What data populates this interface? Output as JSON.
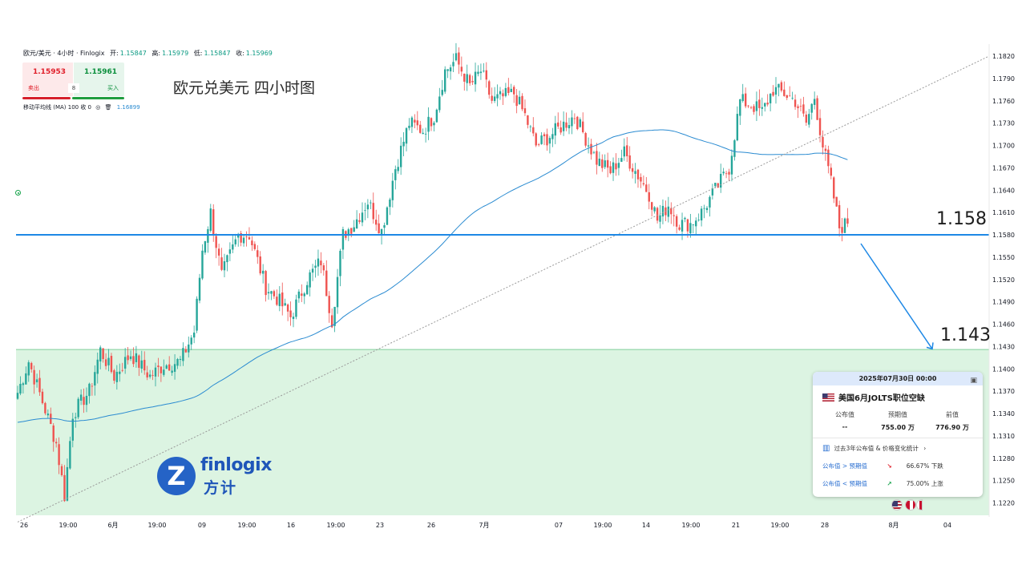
{
  "header": {
    "symbol": "欧元/美元 · 4小时 · Finlogix",
    "open_label": "开:",
    "open": "1.15847",
    "high_label": "高:",
    "high": "1.15979",
    "low_label": "低:",
    "low": "1.15847",
    "close_label": "收:",
    "close": "1.15969"
  },
  "trade": {
    "sell_price": "1.15953",
    "sell_label": "卖出",
    "buy_price": "1.15961",
    "buy_label": "买入",
    "quantity": "8"
  },
  "indicator": {
    "name": "移动平均线 (MA)",
    "params": "100 收 0",
    "value": "1.16899"
  },
  "chart_title": "欧元兑美元 四小时图",
  "annotations": {
    "support_level": "1.158",
    "target_level": "1.143"
  },
  "colors": {
    "up": "#26a69a",
    "down": "#ef5350",
    "ma": "#2a8bd1",
    "level_line": "#1e88e5",
    "zone_fill": "#dcf4e2"
  },
  "logo": {
    "en": "finlogix",
    "zh": "方计"
  },
  "event": {
    "datetime": "2025年07月30日 00:00",
    "title": "美国6月JOLTS职位空缺",
    "flag_icon": "us-flag-icon",
    "actual_label": "公布值",
    "actual_value": "--",
    "forecast_label": "预期值",
    "forecast_value": "755.00 万",
    "previous_label": "前值",
    "previous_value": "776.90 万",
    "stats_link": "过去3年公布值 & 价格变化统计",
    "row1_condition": "公布值 > 预期值",
    "row1_result": "66.67% 下跌",
    "row2_condition": "公布值 < 预期值",
    "row2_result": "75.00% 上涨"
  },
  "chart_data": {
    "type": "candlestick",
    "title": "欧元兑美元 四小时图",
    "symbol": "EUR/USD",
    "timeframe": "4小时",
    "y_range": [
      1.1205,
      1.1835
    ],
    "y_ticks": [
      "1.1820",
      "1.1790",
      "1.1760",
      "1.1730",
      "1.1700",
      "1.1670",
      "1.1640",
      "1.1610",
      "1.1580",
      "1.1550",
      "1.1520",
      "1.1490",
      "1.1460",
      "1.1430",
      "1.1400",
      "1.1370",
      "1.1340",
      "1.1310",
      "1.1280",
      "1.1250",
      "1.1220"
    ],
    "x_ticks": [
      "26",
      "19:00",
      "6月",
      "19:00",
      "09",
      "19:00",
      "16",
      "19:00",
      "23",
      "26",
      "7月",
      "07",
      "19:00",
      "14",
      "19:00",
      "21",
      "19:00",
      "28",
      "8月",
      "04"
    ],
    "ma_period": 100,
    "ma_last": 1.16899,
    "horizontal_level_blue": 1.158,
    "zone_top": 1.1426,
    "projection_target": 1.143,
    "trendline_points": [
      [
        "26 19:00",
        1.1205
      ],
      [
        "8月 04",
        1.182
      ]
    ],
    "price_path": [
      [
        0,
        1.1368
      ],
      [
        4,
        1.141
      ],
      [
        10,
        1.1345
      ],
      [
        14,
        1.13
      ],
      [
        17,
        1.123
      ],
      [
        20,
        1.134
      ],
      [
        26,
        1.137
      ],
      [
        30,
        1.1425
      ],
      [
        35,
        1.139
      ],
      [
        41,
        1.142
      ],
      [
        48,
        1.139
      ],
      [
        53,
        1.1405
      ],
      [
        59,
        1.141
      ],
      [
        64,
        1.145
      ],
      [
        67,
        1.156
      ],
      [
        70,
        1.161
      ],
      [
        74,
        1.1525
      ],
      [
        80,
        1.158
      ],
      [
        84,
        1.158
      ],
      [
        90,
        1.151
      ],
      [
        94,
        1.1495
      ],
      [
        99,
        1.147
      ],
      [
        105,
        1.152
      ],
      [
        110,
        1.1545
      ],
      [
        114,
        1.1465
      ],
      [
        118,
        1.158
      ],
      [
        122,
        1.1595
      ],
      [
        127,
        1.1625
      ],
      [
        132,
        1.1585
      ],
      [
        137,
        1.167
      ],
      [
        142,
        1.173
      ],
      [
        147,
        1.172
      ],
      [
        151,
        1.174
      ],
      [
        155,
        1.18
      ],
      [
        159,
        1.1815
      ],
      [
        164,
        1.178
      ],
      [
        168,
        1.18
      ],
      [
        172,
        1.176
      ],
      [
        176,
        1.1765
      ],
      [
        180,
        1.177
      ],
      [
        184,
        1.174
      ],
      [
        188,
        1.17
      ],
      [
        192,
        1.171
      ],
      [
        197,
        1.1725
      ],
      [
        202,
        1.174
      ],
      [
        206,
        1.171
      ],
      [
        210,
        1.168
      ],
      [
        215,
        1.1665
      ],
      [
        220,
        1.169
      ],
      [
        225,
        1.166
      ],
      [
        229,
        1.1635
      ],
      [
        232,
        1.16
      ],
      [
        236,
        1.162
      ],
      [
        240,
        1.1595
      ],
      [
        244,
        1.1595
      ],
      [
        248,
        1.161
      ],
      [
        253,
        1.164
      ],
      [
        258,
        1.167
      ],
      [
        262,
        1.176
      ],
      [
        266,
        1.1755
      ],
      [
        270,
        1.1745
      ],
      [
        274,
        1.1775
      ],
      [
        278,
        1.177
      ],
      [
        282,
        1.176
      ],
      [
        286,
        1.173
      ],
      [
        289,
        1.1765
      ],
      [
        292,
        1.17
      ],
      [
        295,
        1.165
      ],
      [
        298,
        1.159
      ],
      [
        301,
        1.1595
      ]
    ]
  }
}
